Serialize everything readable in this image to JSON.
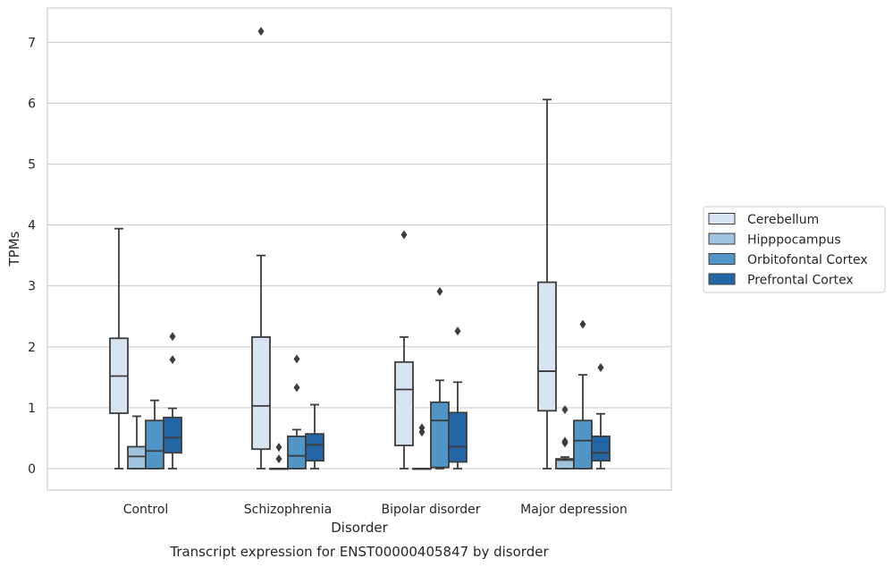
{
  "chart_data": {
    "type": "boxplot",
    "xlabel": "Disorder",
    "ylabel": "TPMs",
    "caption": "Transcript expression for ENST00000405847 by disorder",
    "ylim": [
      -0.35,
      7.55
    ],
    "yticks": [
      0,
      1,
      2,
      3,
      4,
      5,
      6,
      7
    ],
    "grid": "horizontal",
    "legend_position": "right",
    "categories": [
      "Control",
      "Schizophrenia",
      "Bipolar disorder",
      "Major depression"
    ],
    "series": [
      {
        "name": "Cerebellum",
        "color": "#d7e4f2",
        "boxes": [
          {
            "whislo": 0.0,
            "q1": 0.91,
            "med": 1.52,
            "q3": 2.14,
            "whishi": 3.94,
            "fliers": []
          },
          {
            "whislo": 0.0,
            "q1": 0.32,
            "med": 1.03,
            "q3": 2.16,
            "whishi": 3.5,
            "fliers": [
              7.18
            ]
          },
          {
            "whislo": 0.0,
            "q1": 0.38,
            "med": 1.3,
            "q3": 1.75,
            "whishi": 2.16,
            "fliers": [
              3.84
            ]
          },
          {
            "whislo": 0.0,
            "q1": 0.95,
            "med": 1.6,
            "q3": 3.06,
            "whishi": 6.06,
            "fliers": []
          }
        ]
      },
      {
        "name": "Hipppocampus",
        "color": "#9ec4df",
        "boxes": [
          {
            "whislo": 0.0,
            "q1": 0.0,
            "med": 0.2,
            "q3": 0.36,
            "whishi": 0.86,
            "fliers": []
          },
          {
            "whislo": 0.0,
            "q1": 0.0,
            "med": 0.0,
            "q3": 0.0,
            "whishi": 0.0,
            "fliers": [
              0.16,
              0.35
            ]
          },
          {
            "whislo": 0.0,
            "q1": 0.0,
            "med": 0.0,
            "q3": 0.0,
            "whishi": 0.0,
            "fliers": [
              0.6,
              0.67
            ]
          },
          {
            "whislo": 0.0,
            "q1": 0.0,
            "med": 0.14,
            "q3": 0.16,
            "whishi": 0.19,
            "fliers": [
              0.42,
              0.45,
              0.97
            ]
          }
        ]
      },
      {
        "name": "Orbitofontal Cortex",
        "color": "#5195c6",
        "boxes": [
          {
            "whislo": 0.0,
            "q1": 0.0,
            "med": 0.29,
            "q3": 0.79,
            "whishi": 1.12,
            "fliers": []
          },
          {
            "whislo": 0.0,
            "q1": 0.0,
            "med": 0.21,
            "q3": 0.53,
            "whishi": 0.64,
            "fliers": [
              1.33,
              1.8
            ]
          },
          {
            "whislo": 0.0,
            "q1": 0.02,
            "med": 0.79,
            "q3": 1.09,
            "whishi": 1.45,
            "fliers": [
              2.91
            ]
          },
          {
            "whislo": 0.0,
            "q1": 0.0,
            "med": 0.46,
            "q3": 0.79,
            "whishi": 1.54,
            "fliers": [
              2.37
            ]
          }
        ]
      },
      {
        "name": "Prefrontal Cortex",
        "color": "#2466a5",
        "boxes": [
          {
            "whislo": 0.0,
            "q1": 0.26,
            "med": 0.51,
            "q3": 0.84,
            "whishi": 0.99,
            "fliers": [
              1.79,
              2.17
            ]
          },
          {
            "whislo": 0.0,
            "q1": 0.13,
            "med": 0.39,
            "q3": 0.57,
            "whishi": 1.05,
            "fliers": []
          },
          {
            "whislo": 0.0,
            "q1": 0.11,
            "med": 0.36,
            "q3": 0.92,
            "whishi": 1.42,
            "fliers": [
              2.26
            ]
          },
          {
            "whislo": 0.0,
            "q1": 0.13,
            "med": 0.26,
            "q3": 0.53,
            "whishi": 0.9,
            "fliers": [
              1.66
            ]
          }
        ]
      }
    ]
  }
}
